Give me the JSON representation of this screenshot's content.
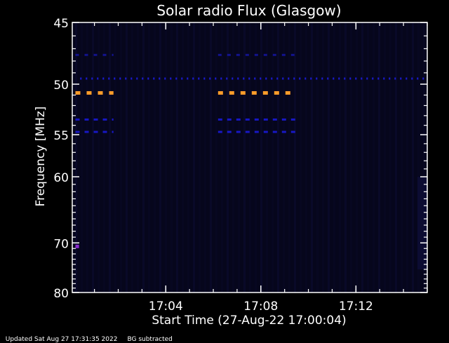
{
  "chart_data": {
    "type": "heatmap",
    "title": "Solar radio Flux (Glasgow)",
    "xlabel": "Start Time (27-Aug-22 17:00:04)",
    "ylabel": "Frequency [MHz]",
    "scale": "log",
    "x_range_min": [
      0.0667,
      15.0
    ],
    "y_range_mhz": [
      45,
      80
    ],
    "y_major_ticks": [
      45,
      50,
      55,
      60,
      70,
      80
    ],
    "y_tick_labels": [
      "45",
      "50",
      "55",
      "60",
      "70",
      "80"
    ],
    "y_minor_ticks": [
      46,
      47,
      48,
      49,
      51,
      52,
      53,
      54,
      56,
      57,
      58,
      59,
      61,
      62,
      63,
      64,
      65,
      66,
      67,
      68,
      69,
      71,
      72,
      73,
      74,
      75,
      76,
      77,
      78,
      79
    ],
    "x_major_ticks_min": [
      4,
      8,
      12
    ],
    "x_tick_labels": [
      "17:04",
      "17:08",
      "17:12"
    ],
    "x_minor_step_min": 1,
    "background_color": "#06061c",
    "features": [
      {
        "name": "interference-50",
        "freq": 50.8,
        "color": "#ff9c2a",
        "segments": [
          [
            0.2,
            1.8
          ],
          [
            6.2,
            9.5
          ]
        ],
        "dash": 7,
        "gap": 9
      },
      {
        "name": "interference-49-5",
        "freq": 49.5,
        "color": "#1b1bd6",
        "segments": [
          [
            0.4,
            15.0
          ]
        ],
        "dash": 2,
        "gap": 6
      },
      {
        "name": "interference-47-5",
        "freq": 47.5,
        "color": "#13138e",
        "segments": [
          [
            0.2,
            1.8
          ],
          [
            6.2,
            9.5
          ]
        ],
        "dash": 5,
        "gap": 8
      },
      {
        "name": "interference-53-5",
        "freq": 53.4,
        "color": "#1818c4",
        "segments": [
          [
            0.2,
            1.8
          ],
          [
            6.2,
            9.5
          ]
        ],
        "dash": 6,
        "gap": 7
      },
      {
        "name": "interference-54-7",
        "freq": 54.7,
        "color": "#1818c4",
        "segments": [
          [
            0.2,
            1.8
          ],
          [
            6.2,
            9.5
          ]
        ],
        "dash": 6,
        "gap": 7
      },
      {
        "name": "blip-70-5",
        "freq": 70.5,
        "color": "#8a2bd0",
        "segments": [
          [
            0.2,
            0.35
          ]
        ],
        "dash": 3,
        "gap": 0
      }
    ],
    "colors": {
      "axis": "#ffffff",
      "orange": "#ff9c2a",
      "blue": "#1b1bd6"
    }
  },
  "footer": {
    "updated": "Updated Sat Aug 27 17:31:35 2022",
    "note": "BG subtracted"
  }
}
